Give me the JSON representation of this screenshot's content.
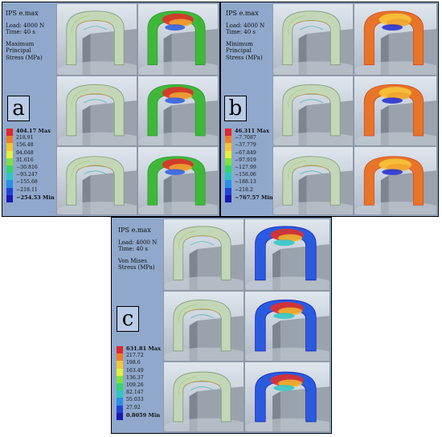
{
  "panels": [
    {
      "id": "a",
      "letter": "a",
      "material": "IPS e.max",
      "load": "Load: 4000 N",
      "time": "Time: 40 s",
      "stress_line1": "Maximum Principal",
      "stress_line2": "Stress (MPa)",
      "legend": [
        "404.17 Max",
        "218.91",
        "156.48",
        "94.048",
        "31.616",
        "−30.816",
        "−93.247",
        "−155.68",
        "−218.11",
        "−254.53 Min"
      ],
      "legend_colors": [
        "#e3262a",
        "#f07d26",
        "#f5c431",
        "#e5f03a",
        "#7fe23a",
        "#35d56d",
        "#2cc7c5",
        "#2a8fe8",
        "#2342d4",
        "#1a1ab2"
      ],
      "contour_scheme": "green"
    },
    {
      "id": "b",
      "letter": "b",
      "material": "IPS e.max",
      "load": "Load: 4000 N",
      "time": "Time: 40 s",
      "stress_line1": "Minimum Principal",
      "stress_line2": "Stress (MPa)",
      "legend": [
        "46.311 Max",
        "−7.7087",
        "−37.779",
        "−67.849",
        "−97.919",
        "−127.99",
        "−158.06",
        "−188.13",
        "−218.2",
        "−767.57 Min"
      ],
      "legend_colors": [
        "#e3262a",
        "#f07d26",
        "#f5c431",
        "#e5f03a",
        "#7fe23a",
        "#35d56d",
        "#2cc7c5",
        "#2a8fe8",
        "#2342d4",
        "#1a1ab2"
      ],
      "contour_scheme": "warm"
    },
    {
      "id": "c",
      "letter": "c",
      "material": "IPS e.max",
      "load": "Load: 4000 N",
      "time": "Time: 40 s",
      "stress_line1": "Von Mises",
      "stress_line2": "Stress (MPa)",
      "legend": [
        "631.81 Max",
        "217.72",
        "198.6",
        "163.49",
        "136.37",
        "109.26",
        "82.147",
        "55.033",
        "27.92",
        "0.8059 Min"
      ],
      "legend_colors": [
        "#e3262a",
        "#f07d26",
        "#f5c431",
        "#e5f03a",
        "#7fe23a",
        "#35d56d",
        "#2cc7c5",
        "#2a8fe8",
        "#2342d4",
        "#1a1ab2"
      ],
      "contour_scheme": "vonmises"
    }
  ]
}
